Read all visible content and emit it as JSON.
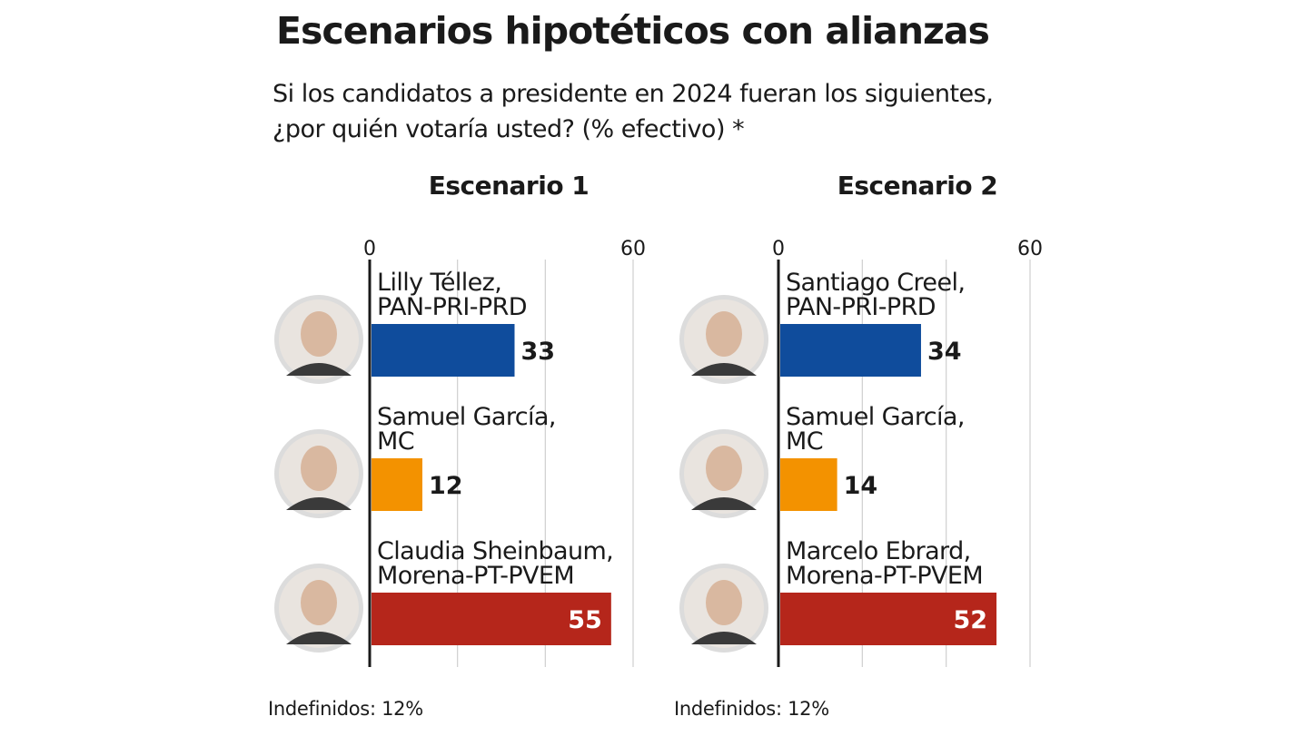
{
  "title": "Escenarios hipotéticos con alianzas",
  "subtitle": "Si los candidatos a presidente en 2024 fueran los siguientes, ¿por quién votaría usted? (% efectivo) *",
  "chart_data": [
    {
      "type": "bar",
      "title": "Escenario 1",
      "xlim": [
        0,
        60
      ],
      "tick_labels": [
        "0",
        "60"
      ],
      "grid": true,
      "categories": [
        [
          "Lilly Téllez,",
          "PAN-PRI-PRD"
        ],
        [
          "Samuel García,",
          "MC"
        ],
        [
          "Claudia Sheinbaum,",
          "Morena-PT-PVEM"
        ]
      ],
      "values": [
        33,
        12,
        55
      ],
      "colors": [
        "#0f4c9c",
        "#f39200",
        "#b5261b"
      ],
      "footnote": "Indefinidos: 12%"
    },
    {
      "type": "bar",
      "title": "Escenario 2",
      "xlim": [
        0,
        60
      ],
      "tick_labels": [
        "0",
        "60"
      ],
      "grid": true,
      "categories": [
        [
          "Santiago Creel,",
          "PAN-PRI-PRD"
        ],
        [
          "Samuel García,",
          "MC"
        ],
        [
          "Marcelo Ebrard,",
          "Morena-PT-PVEM"
        ]
      ],
      "values": [
        34,
        14,
        52
      ],
      "colors": [
        "#0f4c9c",
        "#f39200",
        "#b5261b"
      ],
      "footnote": "Indefinidos: 12%"
    }
  ]
}
